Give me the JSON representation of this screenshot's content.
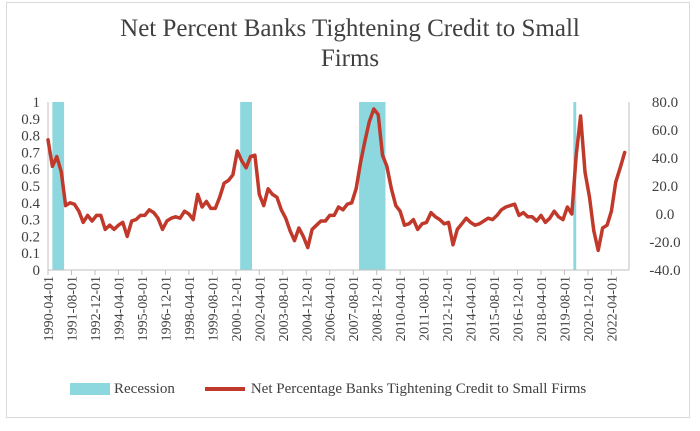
{
  "chart_data": {
    "type": "line",
    "title": "Net Percent Banks Tightening Credit to Small Firms",
    "xlabel": "",
    "ylabel": "",
    "x_tick_labels": [
      "1990-04-01",
      "1991-08-01",
      "1992-12-01",
      "1994-04-01",
      "1995-08-01",
      "1996-12-01",
      "1998-04-01",
      "1999-08-01",
      "2000-12-01",
      "2002-04-01",
      "2003-08-01",
      "2004-12-01",
      "2006-04-01",
      "2007-08-01",
      "2008-12-01",
      "2010-04-01",
      "2011-08-01",
      "2012-12-01",
      "2014-04-01",
      "2015-08-01",
      "2016-12-01",
      "2018-04-01",
      "2019-08-01",
      "2020-12-01",
      "2022-04-01"
    ],
    "x_range": [
      "1990-04-01",
      "2023-04-01"
    ],
    "y_left": {
      "range": [
        0,
        1
      ],
      "ticks": [
        "0",
        "0.1",
        "0.2",
        "0.3",
        "0.4",
        "0.5",
        "0.6",
        "0.7",
        "0.8",
        "0.9",
        "1"
      ]
    },
    "y_right": {
      "range": [
        -40,
        80
      ],
      "ticks": [
        "-40.0",
        "-20.0",
        "0.0",
        "20.0",
        "40.0",
        "60.0",
        "80.0"
      ]
    },
    "grid": false,
    "legend_position": "bottom",
    "series": [
      {
        "name": "Recession",
        "kind": "shaded-area",
        "axis": "left",
        "color": "#8dd8de",
        "periods": [
          {
            "start": "1990-07-01",
            "end": "1991-03-01"
          },
          {
            "start": "2001-03-01",
            "end": "2001-11-01"
          },
          {
            "start": "2007-12-01",
            "end": "2009-06-01"
          },
          {
            "start": "2020-02-01",
            "end": "2020-04-01"
          }
        ]
      },
      {
        "name": "Net Percentage Banks Tightening Credit to Small Firms",
        "kind": "line",
        "axis": "right",
        "color": "#c0392b",
        "points": [
          [
            "1990-04-01",
            53
          ],
          [
            "1990-07-01",
            34
          ],
          [
            "1990-10-01",
            41
          ],
          [
            "1991-01-01",
            30
          ],
          [
            "1991-04-01",
            6
          ],
          [
            "1991-07-01",
            8
          ],
          [
            "1991-10-01",
            7
          ],
          [
            "1992-01-01",
            2
          ],
          [
            "1992-04-01",
            -6
          ],
          [
            "1992-07-01",
            -1
          ],
          [
            "1992-10-01",
            -5
          ],
          [
            "1993-01-01",
            -1
          ],
          [
            "1993-04-01",
            -1
          ],
          [
            "1993-07-01",
            -11
          ],
          [
            "1993-10-01",
            -8
          ],
          [
            "1994-01-01",
            -11
          ],
          [
            "1994-04-01",
            -8
          ],
          [
            "1994-07-01",
            -6
          ],
          [
            "1994-10-01",
            -16
          ],
          [
            "1995-01-01",
            -5
          ],
          [
            "1995-04-01",
            -4
          ],
          [
            "1995-07-01",
            -1
          ],
          [
            "1995-10-01",
            -1
          ],
          [
            "1996-01-01",
            3
          ],
          [
            "1996-04-01",
            1
          ],
          [
            "1996-07-01",
            -3
          ],
          [
            "1996-10-01",
            -11
          ],
          [
            "1997-01-01",
            -5
          ],
          [
            "1997-04-01",
            -3
          ],
          [
            "1997-07-01",
            -2
          ],
          [
            "1997-10-01",
            -3
          ],
          [
            "1998-01-01",
            2
          ],
          [
            "1998-04-01",
            0
          ],
          [
            "1998-07-01",
            -4
          ],
          [
            "1998-10-01",
            14
          ],
          [
            "1999-01-01",
            5
          ],
          [
            "1999-04-01",
            9
          ],
          [
            "1999-07-01",
            4
          ],
          [
            "1999-10-01",
            4
          ],
          [
            "2000-01-01",
            12
          ],
          [
            "2000-04-01",
            22
          ],
          [
            "2000-07-01",
            24
          ],
          [
            "2000-10-01",
            28
          ],
          [
            "2001-01-01",
            45
          ],
          [
            "2001-04-01",
            38
          ],
          [
            "2001-07-01",
            33
          ],
          [
            "2001-10-01",
            41
          ],
          [
            "2002-01-01",
            42
          ],
          [
            "2002-04-01",
            14
          ],
          [
            "2002-07-01",
            6
          ],
          [
            "2002-10-01",
            18
          ],
          [
            "2003-01-01",
            14
          ],
          [
            "2003-04-01",
            12
          ],
          [
            "2003-07-01",
            3
          ],
          [
            "2003-10-01",
            -3
          ],
          [
            "2004-01-01",
            -12
          ],
          [
            "2004-04-01",
            -19
          ],
          [
            "2004-07-01",
            -10
          ],
          [
            "2004-10-01",
            -16
          ],
          [
            "2005-01-01",
            -24
          ],
          [
            "2005-04-01",
            -11
          ],
          [
            "2005-07-01",
            -8
          ],
          [
            "2005-10-01",
            -5
          ],
          [
            "2006-01-01",
            -5
          ],
          [
            "2006-04-01",
            -1
          ],
          [
            "2006-07-01",
            -1
          ],
          [
            "2006-10-01",
            5
          ],
          [
            "2007-01-01",
            3
          ],
          [
            "2007-04-01",
            7
          ],
          [
            "2007-07-01",
            8
          ],
          [
            "2007-10-01",
            18
          ],
          [
            "2008-01-01",
            37
          ],
          [
            "2008-04-01",
            52
          ],
          [
            "2008-07-01",
            66
          ],
          [
            "2008-10-01",
            75
          ],
          [
            "2009-01-01",
            71
          ],
          [
            "2009-04-01",
            42
          ],
          [
            "2009-07-01",
            34
          ],
          [
            "2009-10-01",
            18
          ],
          [
            "2010-01-01",
            6
          ],
          [
            "2010-04-01",
            2
          ],
          [
            "2010-07-01",
            -8
          ],
          [
            "2010-10-01",
            -7
          ],
          [
            "2011-01-01",
            -4
          ],
          [
            "2011-04-01",
            -11
          ],
          [
            "2011-07-01",
            -7
          ],
          [
            "2011-10-01",
            -6
          ],
          [
            "2012-01-01",
            1
          ],
          [
            "2012-04-01",
            -2
          ],
          [
            "2012-07-01",
            -4
          ],
          [
            "2012-10-01",
            -7
          ],
          [
            "2013-01-01",
            -6
          ],
          [
            "2013-04-01",
            -22
          ],
          [
            "2013-07-01",
            -11
          ],
          [
            "2013-10-01",
            -7
          ],
          [
            "2014-01-01",
            -3
          ],
          [
            "2014-04-01",
            -6
          ],
          [
            "2014-07-01",
            -8
          ],
          [
            "2014-10-01",
            -7
          ],
          [
            "2015-01-01",
            -5
          ],
          [
            "2015-04-01",
            -3
          ],
          [
            "2015-07-01",
            -4
          ],
          [
            "2015-10-01",
            -1
          ],
          [
            "2016-01-01",
            3
          ],
          [
            "2016-04-01",
            5
          ],
          [
            "2016-07-01",
            6
          ],
          [
            "2016-10-01",
            7
          ],
          [
            "2017-01-01",
            -1
          ],
          [
            "2017-04-01",
            1
          ],
          [
            "2017-07-01",
            -2
          ],
          [
            "2017-10-01",
            -2
          ],
          [
            "2018-01-01",
            -5
          ],
          [
            "2018-04-01",
            -1
          ],
          [
            "2018-07-01",
            -6
          ],
          [
            "2018-10-01",
            -3
          ],
          [
            "2019-01-01",
            2
          ],
          [
            "2019-04-01",
            -2
          ],
          [
            "2019-07-01",
            -4
          ],
          [
            "2019-10-01",
            5
          ],
          [
            "2020-01-01",
            0
          ],
          [
            "2020-04-01",
            42
          ],
          [
            "2020-07-01",
            70
          ],
          [
            "2020-10-01",
            30
          ],
          [
            "2021-01-01",
            12
          ],
          [
            "2021-04-01",
            -12
          ],
          [
            "2021-07-01",
            -26
          ],
          [
            "2021-10-01",
            -10
          ],
          [
            "2022-01-01",
            -8
          ],
          [
            "2022-04-01",
            2
          ],
          [
            "2022-07-01",
            23
          ],
          [
            "2022-10-01",
            33
          ],
          [
            "2023-01-01",
            44
          ]
        ]
      }
    ]
  }
}
